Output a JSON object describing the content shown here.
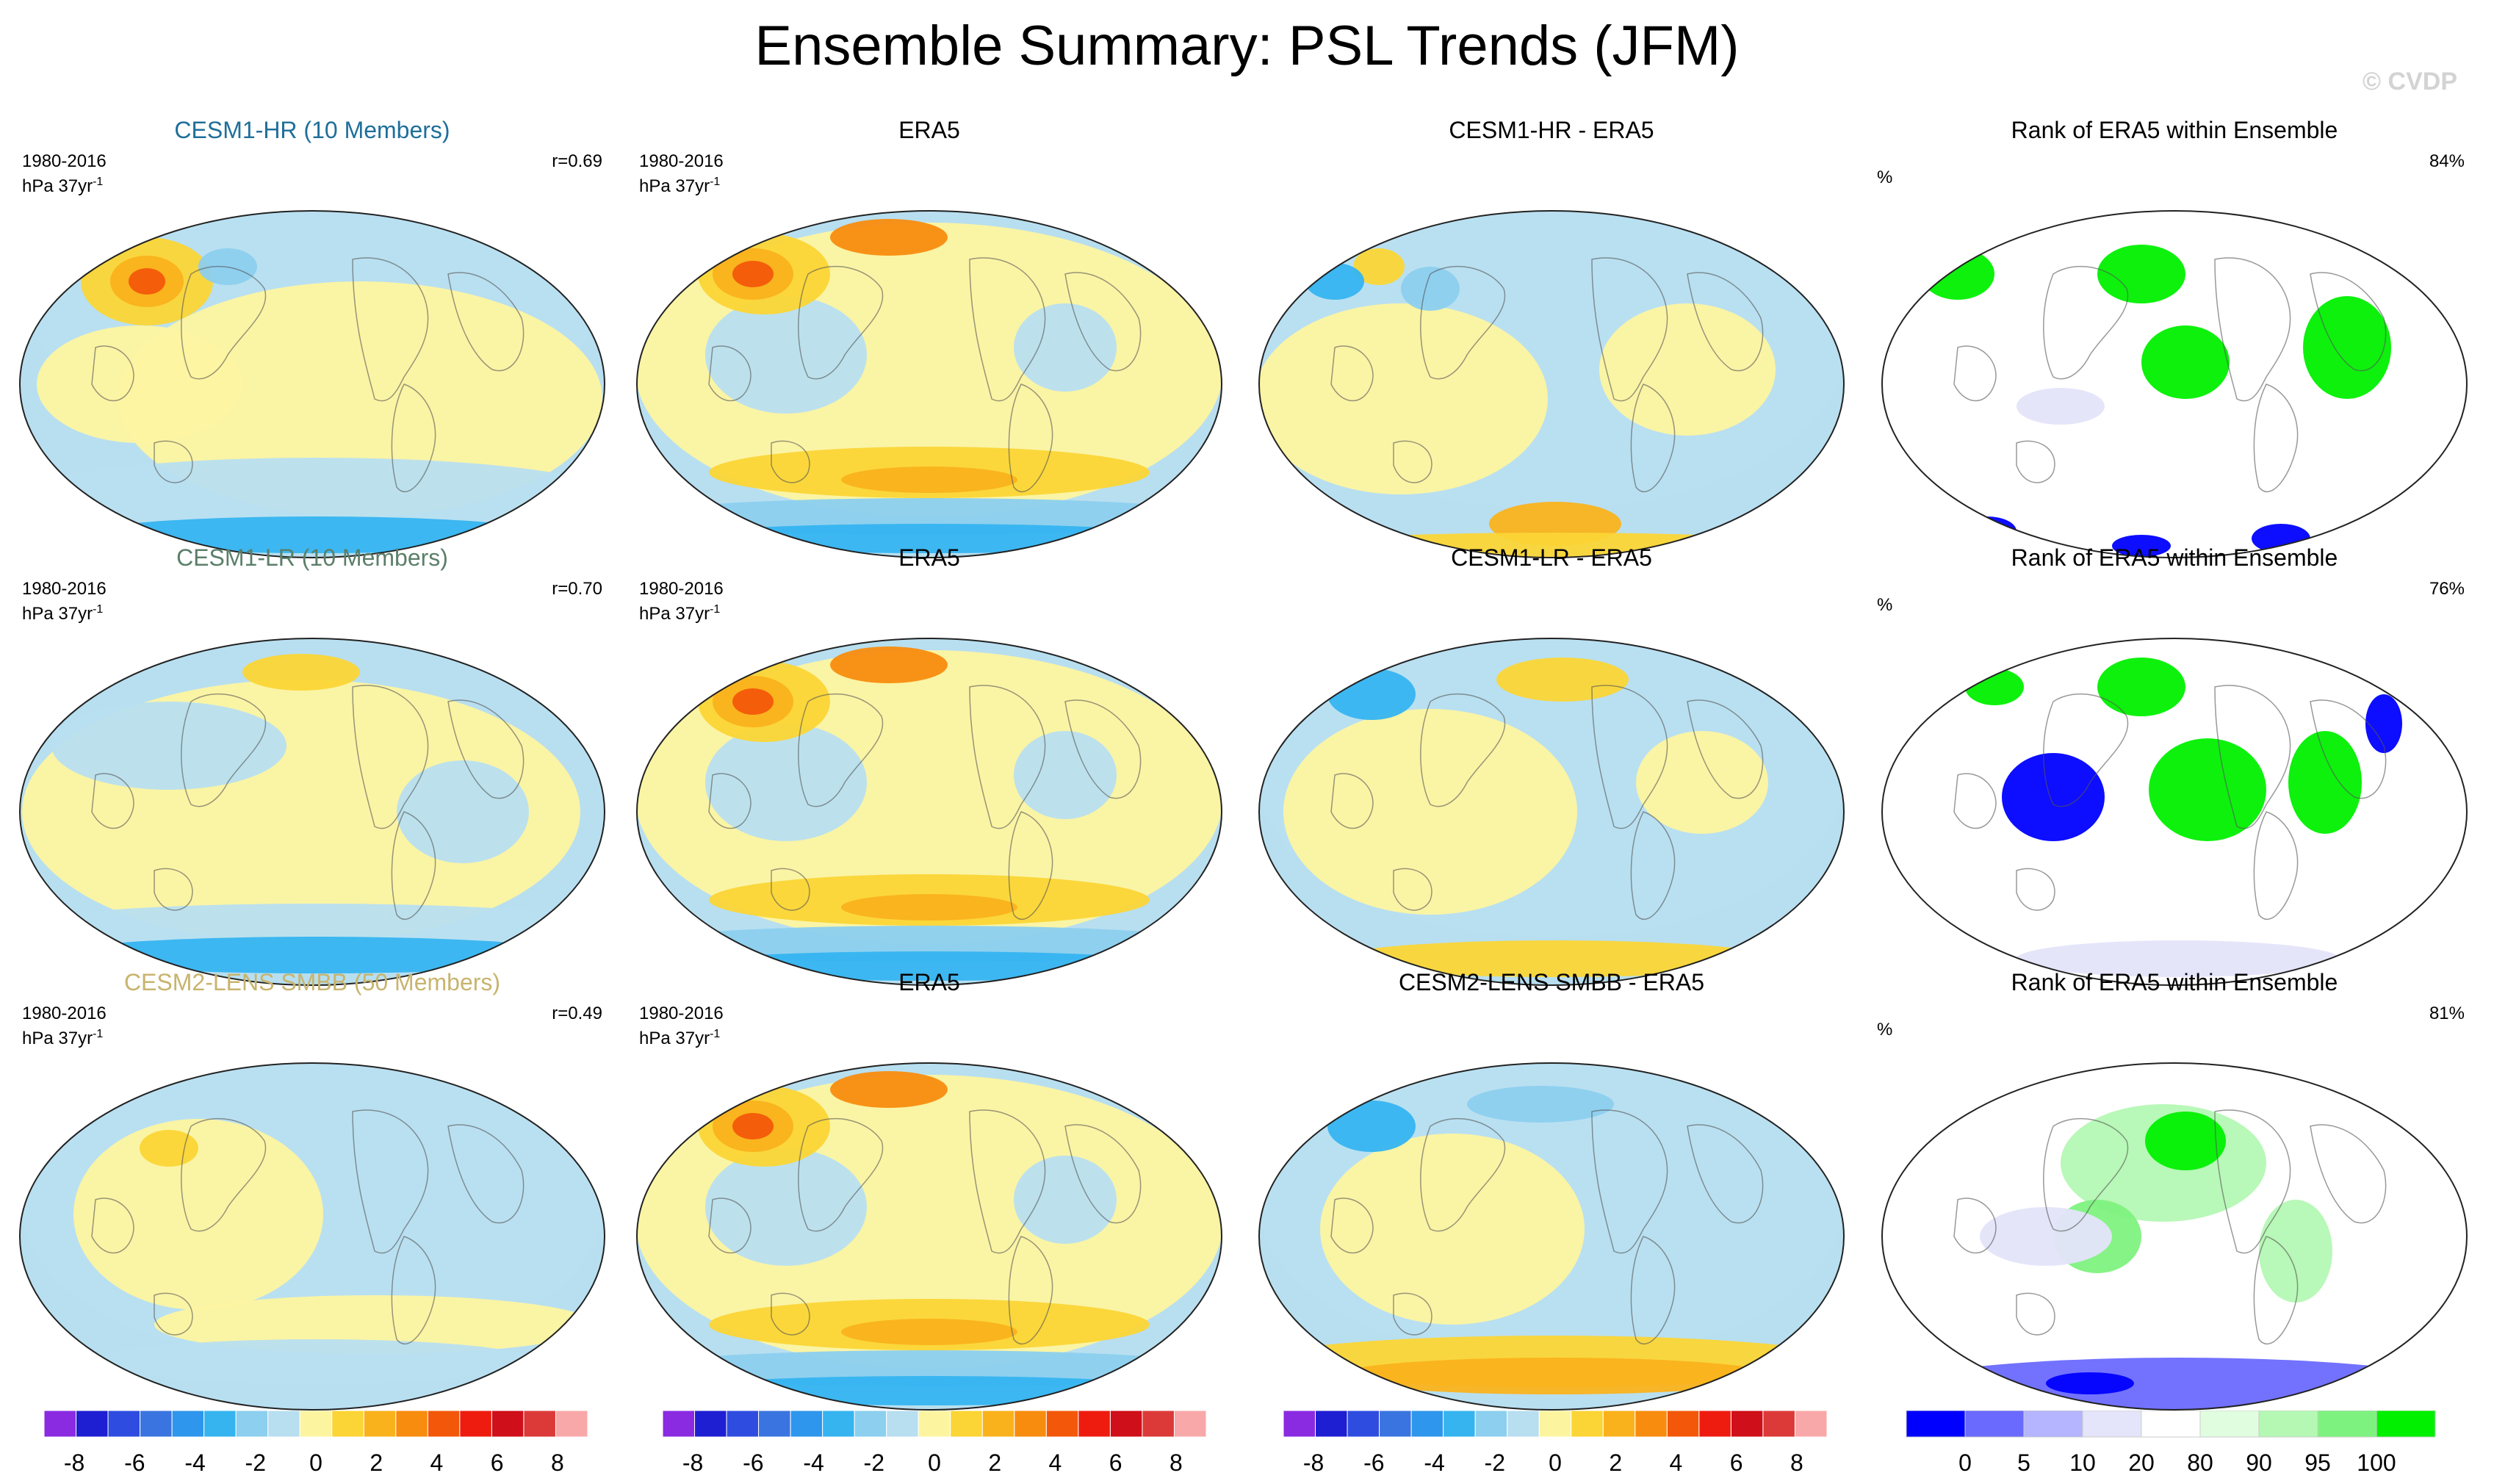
{
  "title": "Ensemble Summary: PSL Trends (JFM)",
  "watermark": "© CVDP",
  "period": "1980-2016",
  "units_prefix": "hPa 37yr",
  "units_exp": "-1",
  "colors": {
    "blue_title": "#1f6f9a",
    "green_title": "#5b7f6a",
    "tan_title": "#c8b46e",
    "trend_scale": [
      "#8a2be2",
      "#1e1ed2",
      "#2e4de0",
      "#3a74e0",
      "#2e96ec",
      "#35b4f0",
      "#8ccfee",
      "#b8dff0",
      "#fdf4a0",
      "#fbd535",
      "#fab21c",
      "#f88c0e",
      "#f3580a",
      "#ee1c0f",
      "#cf0f19",
      "#dc3a38",
      "#f8a8a8"
    ],
    "rank_scale": [
      "#0000ff",
      "#6a6aff",
      "#b4b4ff",
      "#e4e4fa",
      "#ffffff",
      "#e0fde0",
      "#b4f8b4",
      "#7ef27e",
      "#00f000"
    ]
  },
  "rows": [
    {
      "model": "CESM1-HR (10 Members)",
      "model_color": "#1f6f9a",
      "r": "r=0.69",
      "obs": "ERA5",
      "diff": "CESM1-HR - ERA5",
      "rank": "Rank of ERA5 within Ensemble",
      "rank_pct": "84%"
    },
    {
      "model": "CESM1-LR (10 Members)",
      "model_color": "#5b7f6a",
      "r": "r=0.70",
      "obs": "ERA5",
      "diff": "CESM1-LR - ERA5",
      "rank": "Rank of ERA5 within Ensemble",
      "rank_pct": "76%"
    },
    {
      "model": "CESM2-LENS SMBB (50 Members)",
      "model_color": "#c8b46e",
      "r": "r=0.49",
      "obs": "ERA5",
      "diff": "CESM2-LENS SMBB - ERA5",
      "rank": "Rank of ERA5 within Ensemble",
      "rank_pct": "81%"
    }
  ],
  "pct_symbol": "%",
  "chart_data": {
    "type": "heatmap",
    "trend_colorbar": {
      "ticks": [
        "-8",
        "-6",
        "-4",
        "-2",
        "0",
        "2",
        "4",
        "6",
        "8"
      ],
      "range": [
        -9,
        9
      ],
      "step": 1
    },
    "rank_colorbar": {
      "ticks": [
        "0",
        "5",
        "10",
        "20",
        "80",
        "90",
        "95",
        "100"
      ]
    }
  }
}
